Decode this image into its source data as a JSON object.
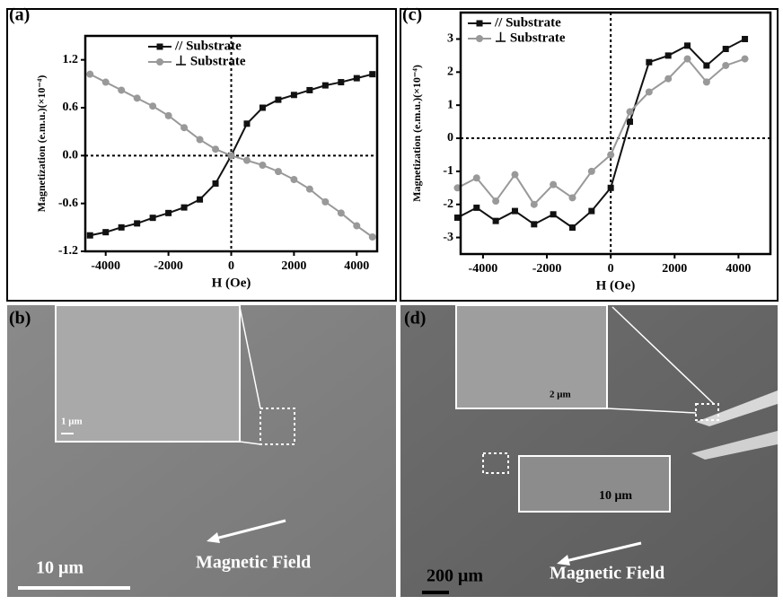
{
  "chart_data": [
    {
      "type": "line",
      "panel": "(a)",
      "xlabel": "H (Oe)",
      "ylabel": "Magnetization (e.m.u.)(×10⁻⁴)",
      "x": [
        -4500,
        -4000,
        -3500,
        -3000,
        -2500,
        -2000,
        -1500,
        -1000,
        -500,
        0,
        500,
        1000,
        1500,
        2000,
        2500,
        3000,
        3500,
        4000,
        4500
      ],
      "xlim": [
        -4650,
        4650
      ],
      "xticks": [
        -4000,
        -2000,
        0,
        2000,
        4000
      ],
      "ylim": [
        -1.2,
        1.5
      ],
      "yticks": [
        1.2,
        0.6,
        {
          "value": 0,
          "label": "0.0"
        },
        -0.6,
        -1.2
      ],
      "legend": "upper center",
      "series": [
        {
          "name": "// Substrate",
          "color": "#111111",
          "marker": "square",
          "values": [
            -1.0,
            -0.96,
            -0.9,
            -0.85,
            -0.78,
            -0.72,
            -0.65,
            -0.55,
            -0.35,
            0.0,
            0.4,
            0.6,
            0.7,
            0.76,
            0.82,
            0.88,
            0.92,
            0.97,
            1.02
          ]
        },
        {
          "name": "⊥ Substrate",
          "color": "#999999",
          "marker": "circle",
          "values": [
            1.02,
            0.92,
            0.82,
            0.72,
            0.62,
            0.5,
            0.35,
            0.2,
            0.08,
            0.0,
            -0.06,
            -0.12,
            -0.2,
            -0.3,
            -0.42,
            -0.58,
            -0.72,
            -0.88,
            -1.02
          ]
        }
      ]
    },
    {
      "type": "line",
      "panel": "(c)",
      "xlabel": "H (Oe)",
      "ylabel": "Magnetization (e.m.u.)(×10⁻⁴)",
      "x": [
        -4800,
        -4200,
        -3600,
        -3000,
        -2400,
        -1800,
        -1200,
        -600,
        0,
        600,
        1200,
        1800,
        2400,
        3000,
        3600,
        4200
      ],
      "xlim": [
        -4700,
        5000
      ],
      "xticks": [
        -4000,
        -2000,
        0,
        2000,
        4000
      ],
      "ylim": [
        -3.5,
        3.8
      ],
      "yticks": [
        3,
        2,
        1,
        0,
        -1,
        -2,
        -3
      ],
      "legend": "upper left",
      "series": [
        {
          "name": "// Substrate",
          "color": "#111111",
          "marker": "square",
          "values": [
            -2.4,
            -2.1,
            -2.5,
            -2.2,
            -2.6,
            -2.3,
            -2.7,
            -2.2,
            -1.5,
            0.5,
            2.3,
            2.5,
            2.8,
            2.2,
            2.7,
            3.0
          ]
        },
        {
          "name": "⊥ Substrate",
          "color": "#999999",
          "marker": "circle",
          "values": [
            -1.5,
            -1.2,
            -1.9,
            -1.1,
            -2.0,
            -1.4,
            -1.8,
            -1.0,
            -0.5,
            0.8,
            1.4,
            1.8,
            2.4,
            1.7,
            2.2,
            2.4
          ]
        }
      ]
    }
  ],
  "images": [
    {
      "panel": "(b)",
      "inset_scale": "1 μm",
      "scale_bar": "10 μm",
      "arrow_label": "Magnetic Field"
    },
    {
      "panel": "(d)",
      "inset_scale": "2 μm",
      "inset2_scale": "10 μm",
      "scale_bar": "200 μm",
      "arrow_label": "Magnetic Field"
    }
  ]
}
